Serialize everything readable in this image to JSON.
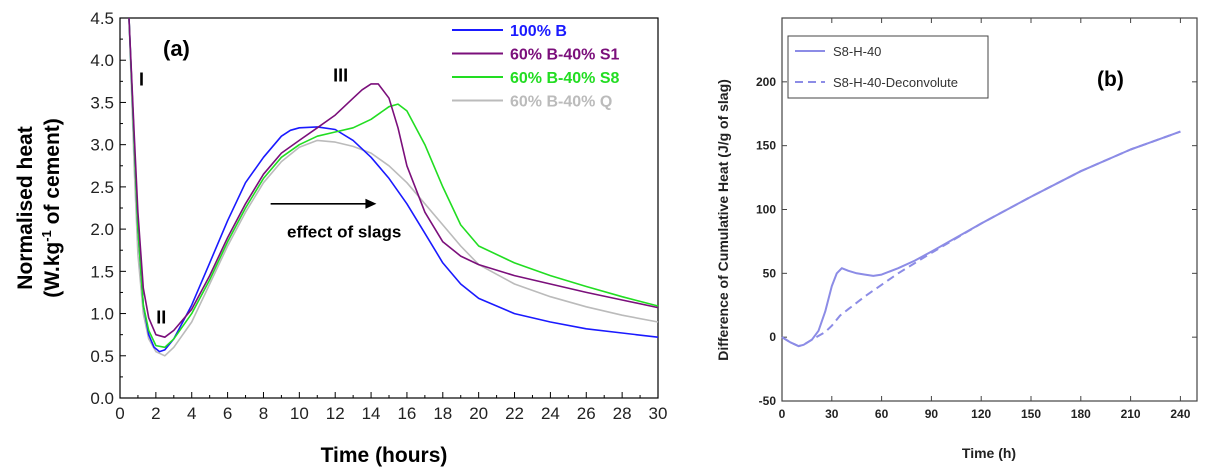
{
  "chart_data": [
    {
      "type": "line",
      "panel_label": "(a)",
      "xlabel": "Time (hours)",
      "ylabel_line1": "Normalised heat",
      "ylabel_line2_pre": "(W.kg",
      "ylabel_line2_sup": "-1",
      "ylabel_line2_post": " of cement)",
      "xlim": [
        0,
        30
      ],
      "ylim": [
        0,
        4.5
      ],
      "x_ticks": [
        "0",
        "2",
        "4",
        "6",
        "8",
        "10",
        "12",
        "14",
        "16",
        "18",
        "20",
        "22",
        "24",
        "26",
        "28",
        "30"
      ],
      "y_ticks": [
        "0.0",
        "0.5",
        "1.0",
        "1.5",
        "2.0",
        "2.5",
        "3.0",
        "3.5",
        "4.0",
        "4.5"
      ],
      "grid": false,
      "legend_position": "top-right",
      "annotations": [
        {
          "text": "I",
          "x": 1.2,
          "y": 3.7
        },
        {
          "text": "II",
          "x": 2.3,
          "y": 0.88
        },
        {
          "text": "III",
          "x": 12.3,
          "y": 3.75
        },
        {
          "text": "effect of slags",
          "x": 12.5,
          "y": 1.9
        }
      ],
      "arrow": {
        "from": [
          8.4,
          2.3
        ],
        "to": [
          14.3,
          2.3
        ]
      },
      "series": [
        {
          "name": "100% B",
          "color": "#1a1aff",
          "x": [
            0.5,
            0.8,
            1.0,
            1.3,
            1.6,
            1.9,
            2.2,
            2.5,
            3,
            4,
            5,
            6,
            7,
            8,
            9,
            9.5,
            10,
            11,
            12,
            13,
            14,
            15,
            16,
            17,
            18,
            19,
            20,
            22,
            24,
            26,
            28,
            30
          ],
          "y": [
            4.5,
            3.0,
            2.0,
            1.1,
            0.75,
            0.6,
            0.55,
            0.57,
            0.7,
            1.1,
            1.6,
            2.1,
            2.55,
            2.85,
            3.1,
            3.17,
            3.2,
            3.21,
            3.18,
            3.05,
            2.85,
            2.6,
            2.3,
            1.95,
            1.6,
            1.35,
            1.18,
            1.0,
            0.9,
            0.82,
            0.77,
            0.72
          ]
        },
        {
          "name": "60% B-40% S1",
          "color": "#7b0f7b",
          "x": [
            0.5,
            0.8,
            1.0,
            1.3,
            1.6,
            2.0,
            2.5,
            3,
            4,
            5,
            6,
            7,
            8,
            9,
            10,
            11,
            12,
            13,
            13.5,
            14,
            14.4,
            15,
            15.5,
            16,
            17,
            18,
            19,
            20,
            22,
            24,
            26,
            28,
            30
          ],
          "y": [
            4.5,
            3.1,
            2.2,
            1.3,
            0.95,
            0.75,
            0.72,
            0.8,
            1.05,
            1.45,
            1.9,
            2.3,
            2.65,
            2.9,
            3.05,
            3.2,
            3.35,
            3.55,
            3.65,
            3.72,
            3.72,
            3.55,
            3.2,
            2.75,
            2.2,
            1.85,
            1.68,
            1.58,
            1.45,
            1.35,
            1.25,
            1.16,
            1.07
          ]
        },
        {
          "name": "60% B-40% S8",
          "color": "#22dd22",
          "x": [
            0.5,
            0.8,
            1.0,
            1.3,
            1.6,
            2.0,
            2.5,
            3,
            4,
            5,
            6,
            7,
            8,
            9,
            10,
            11,
            12,
            13,
            14,
            15,
            15.5,
            16,
            17,
            18,
            19,
            20,
            22,
            24,
            26,
            28,
            30
          ],
          "y": [
            4.5,
            3.0,
            2.0,
            1.1,
            0.8,
            0.62,
            0.6,
            0.7,
            1.0,
            1.4,
            1.85,
            2.25,
            2.6,
            2.85,
            3.0,
            3.1,
            3.15,
            3.2,
            3.3,
            3.45,
            3.48,
            3.4,
            3.0,
            2.5,
            2.05,
            1.8,
            1.6,
            1.45,
            1.32,
            1.2,
            1.09
          ]
        },
        {
          "name": "60% B-40% Q",
          "color": "#bbbbbb",
          "x": [
            0.5,
            0.8,
            1.0,
            1.3,
            1.6,
            2.0,
            2.5,
            3,
            4,
            5,
            6,
            7,
            8,
            9,
            10,
            11,
            12,
            13,
            14,
            15,
            16,
            17,
            18,
            19,
            20,
            22,
            24,
            26,
            28,
            30
          ],
          "y": [
            4.5,
            2.7,
            1.7,
            1.0,
            0.7,
            0.55,
            0.5,
            0.6,
            0.9,
            1.35,
            1.8,
            2.2,
            2.55,
            2.8,
            2.97,
            3.05,
            3.03,
            2.98,
            2.9,
            2.75,
            2.55,
            2.3,
            2.05,
            1.8,
            1.58,
            1.35,
            1.2,
            1.08,
            0.98,
            0.9
          ]
        }
      ]
    },
    {
      "type": "line",
      "panel_label": "(b)",
      "xlabel": "Time (h)",
      "ylabel": "Difference of Cumulative Heat (J/g of slag)",
      "xlim": [
        0,
        250
      ],
      "ylim": [
        -50,
        250
      ],
      "x_ticks": [
        0,
        30,
        60,
        90,
        120,
        150,
        180,
        210,
        240
      ],
      "y_ticks": [
        -50,
        0,
        50,
        100,
        150,
        200
      ],
      "grid": false,
      "legend_position": "top-left",
      "series": [
        {
          "name": "S8-H-40",
          "color": "#8c8ce6",
          "style": "solid",
          "x": [
            0,
            5,
            10,
            13,
            18,
            22,
            26,
            30,
            33,
            36,
            40,
            45,
            50,
            55,
            60,
            70,
            80,
            90,
            120,
            150,
            180,
            210,
            240
          ],
          "y": [
            0,
            -4,
            -7,
            -6,
            -2,
            5,
            20,
            40,
            50,
            54,
            52,
            50,
            49,
            48,
            49,
            54,
            60,
            67,
            89,
            110,
            130,
            147,
            161
          ]
        },
        {
          "name": "S8-H-40-Deconvolute",
          "color": "#8c8ce6",
          "style": "dashed",
          "x": [
            0,
            5,
            10,
            13,
            18,
            22,
            26,
            30,
            35,
            40,
            50,
            60,
            70,
            80,
            90,
            120,
            150,
            180,
            210,
            240
          ],
          "y": [
            0,
            -4,
            -7,
            -6,
            -2,
            1,
            4,
            9,
            17,
            22,
            32,
            41,
            50,
            58,
            66,
            89,
            110,
            130,
            147,
            161
          ]
        }
      ]
    }
  ]
}
